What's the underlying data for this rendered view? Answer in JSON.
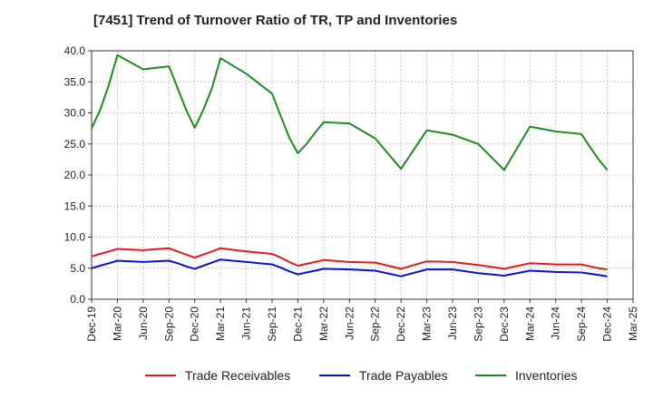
{
  "colors": {
    "receivables": "#e31a1c",
    "payables": "#0a10d0",
    "inventories": "#1f8a1f",
    "grid": "#c8c8c8",
    "axis": "#333333",
    "text": "#222222"
  },
  "chart_data": {
    "type": "line",
    "title": "[7451]  Trend of Turnover Ratio of TR, TP and Inventories",
    "xlabel": "",
    "ylabel": "",
    "ylim": [
      0,
      40
    ],
    "y_ticks": [
      0,
      5,
      10,
      15,
      20,
      25,
      30,
      35,
      40
    ],
    "y_tick_labels": [
      "0.0",
      "5.0",
      "10.0",
      "15.0",
      "20.0",
      "25.0",
      "30.0",
      "35.0",
      "40.0"
    ],
    "x_tick_labels": [
      "Dec-19",
      "Mar-20",
      "Jun-20",
      "Sep-20",
      "Dec-20",
      "Mar-21",
      "Jun-21",
      "Sep-21",
      "Dec-21",
      "Mar-22",
      "Jun-22",
      "Sep-22",
      "Dec-22",
      "Mar-23",
      "Jun-23",
      "Sep-23",
      "Dec-23",
      "Mar-24",
      "Jun-24",
      "Sep-24",
      "Dec-24",
      "Mar-25"
    ],
    "grid": true,
    "legend_position": "bottom",
    "x": [
      "Dec-19",
      "Jan-20",
      "Feb-20",
      "Mar-20",
      "Jun-20",
      "Sep-20",
      "Oct-20",
      "Nov-20",
      "Dec-20",
      "Jan-21",
      "Feb-21",
      "Mar-21",
      "Jun-21",
      "Sep-21",
      "Oct-21",
      "Nov-21",
      "Dec-21",
      "Jan-22",
      "Feb-22",
      "Mar-22",
      "Jun-22",
      "Sep-22",
      "Dec-22",
      "Mar-23",
      "Jun-23",
      "Sep-23",
      "Dec-23",
      "Mar-24",
      "Jun-24",
      "Sep-24",
      "Oct-24",
      "Nov-24",
      "Dec-24"
    ],
    "series": [
      {
        "name": "Trade Receivables",
        "color_key": "receivables",
        "values": [
          6.9,
          7.3,
          7.7,
          8.1,
          7.9,
          8.2,
          7.7,
          7.2,
          6.7,
          7.2,
          7.7,
          8.2,
          7.7,
          7.3,
          6.7,
          6.0,
          5.4,
          5.7,
          6.0,
          6.3,
          6.0,
          5.9,
          4.9,
          6.1,
          6.0,
          5.5,
          4.9,
          5.8,
          5.6,
          5.6,
          5.3,
          5.0,
          4.8
        ]
      },
      {
        "name": "Trade Payables",
        "color_key": "payables",
        "values": [
          5.0,
          5.4,
          5.8,
          6.2,
          6.0,
          6.2,
          5.8,
          5.3,
          4.9,
          5.4,
          5.9,
          6.4,
          6.0,
          5.6,
          5.1,
          4.5,
          4.0,
          4.3,
          4.6,
          4.9,
          4.8,
          4.6,
          3.7,
          4.8,
          4.8,
          4.2,
          3.8,
          4.6,
          4.4,
          4.3,
          4.1,
          3.9,
          3.7
        ]
      },
      {
        "name": "Inventories",
        "color_key": "inventories",
        "values": [
          27.5,
          30.5,
          34.5,
          39.3,
          37.0,
          37.5,
          34.0,
          30.5,
          27.6,
          30.5,
          34.0,
          38.8,
          36.3,
          33.1,
          29.5,
          26.0,
          23.5,
          25.0,
          26.8,
          28.5,
          28.3,
          25.9,
          21.0,
          27.2,
          26.5,
          25.0,
          20.8,
          27.8,
          27.0,
          26.6,
          24.5,
          22.5,
          20.8
        ]
      }
    ]
  }
}
